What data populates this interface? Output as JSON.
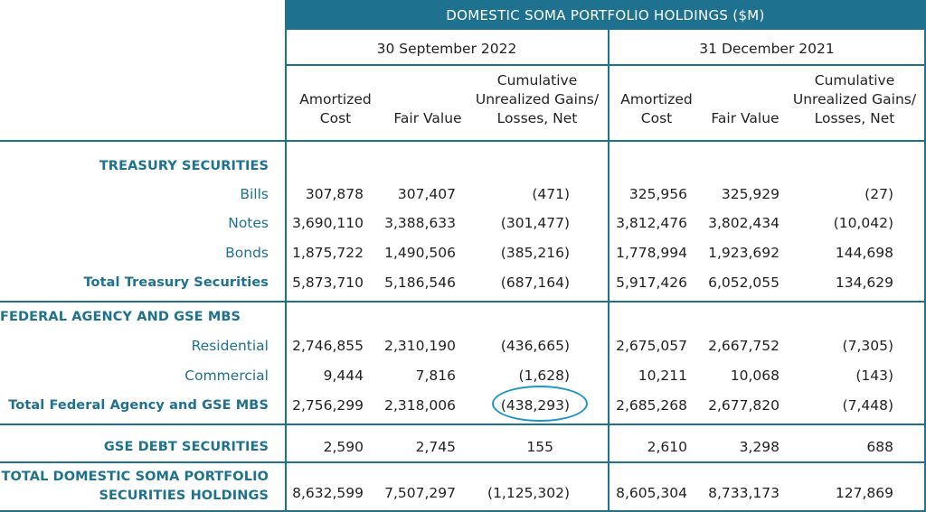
{
  "title": "DOMESTIC SOMA PORTFOLIO HOLDINGS ($M)",
  "periods": [
    "30 September 2022",
    "31 December 2021"
  ],
  "columns": [
    [
      "Amortized",
      "Cost"
    ],
    [
      "Fair Value"
    ],
    [
      "Cumulative",
      "Unrealized Gains/",
      "Losses, Net"
    ]
  ],
  "sections": {
    "treasury": {
      "heading": "TREASURY SECURITIES",
      "rows": [
        {
          "label": "Bills",
          "values": [
            "307,878",
            "307,407",
            "(471)",
            "325,956",
            "325,929",
            "(27)"
          ]
        },
        {
          "label": "Notes",
          "values": [
            "3,690,110",
            "3,388,633",
            "(301,477)",
            "3,812,476",
            "3,802,434",
            "(10,042)"
          ]
        },
        {
          "label": "Bonds",
          "values": [
            "1,875,722",
            "1,490,506",
            "(385,216)",
            "1,778,994",
            "1,923,692",
            "144,698"
          ]
        }
      ],
      "total": {
        "label": "Total Treasury Securities",
        "values": [
          "5,873,710",
          "5,186,546",
          "(687,164)",
          "5,917,426",
          "6,052,055",
          "134,629"
        ]
      }
    },
    "agency": {
      "heading": "FEDERAL AGENCY AND GSE MBS",
      "rows": [
        {
          "label": "Residential",
          "values": [
            "2,746,855",
            "2,310,190",
            "(436,665)",
            "2,675,057",
            "2,667,752",
            "(7,305)"
          ]
        },
        {
          "label": "Commercial",
          "values": [
            "9,444",
            "7,816",
            "(1,628)",
            "10,211",
            "10,068",
            "(143)"
          ]
        }
      ],
      "total": {
        "label": "Total Federal Agency and GSE MBS",
        "values": [
          "2,756,299",
          "2,318,006",
          "(438,293)",
          "2,685,268",
          "2,677,820",
          "(7,448)"
        ]
      }
    },
    "gse_debt": {
      "label": "GSE DEBT SECURITIES",
      "values": [
        "2,590",
        "2,745",
        "155",
        "2,610",
        "3,298",
        "688"
      ]
    },
    "grand_total": {
      "label_lines": [
        "TOTAL DOMESTIC SOMA PORTFOLIO",
        "SECURITIES HOLDINGS"
      ],
      "values": [
        "8,632,599",
        "7,507,297",
        "(1,125,302)",
        "8,605,304",
        "8,733,173",
        "127,869"
      ]
    }
  },
  "colors": {
    "accent": "#1f7190",
    "highlight": "#1a96c9"
  }
}
